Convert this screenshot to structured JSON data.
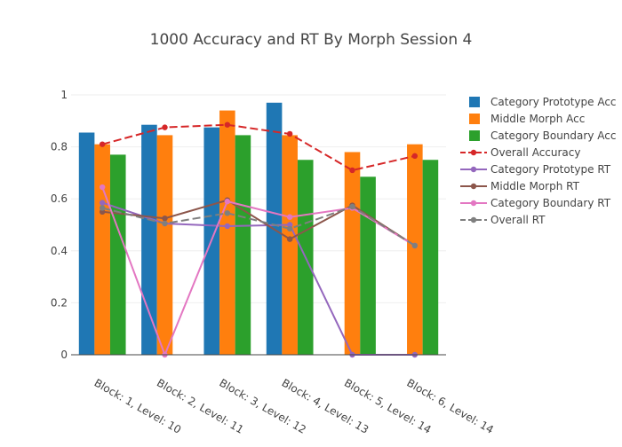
{
  "chart_data": {
    "type": "bar",
    "title": "1000 Accuracy and RT By Morph Session 4",
    "xlabel": "",
    "ylabel": "",
    "ylim": [
      0,
      1
    ],
    "yticks": [
      0,
      0.2,
      0.4,
      0.6,
      0.8,
      1
    ],
    "ytick_labels": [
      "0",
      "0.2",
      "0.4",
      "0.6",
      "0.8",
      "1"
    ],
    "grid": true,
    "legend_position": "right",
    "categories": [
      "Block: 1, Level: 10",
      "Block: 2, Level: 11",
      "Block: 3, Level: 12",
      "Block: 4, Level: 13",
      "Block: 5, Level: 14",
      "Block: 6, Level: 14"
    ],
    "series": [
      {
        "name": "Category Prototype Acc",
        "kind": "bar",
        "color": "#1f77b4",
        "values": [
          0.855,
          0.885,
          0.875,
          0.97,
          null,
          null
        ]
      },
      {
        "name": "Middle Morph Acc",
        "kind": "bar",
        "color": "#ff7f0e",
        "values": [
          0.81,
          0.845,
          0.94,
          0.845,
          0.78,
          0.81
        ]
      },
      {
        "name": "Category Boundary Acc",
        "kind": "bar",
        "color": "#2ca02c",
        "values": [
          0.77,
          null,
          0.845,
          0.75,
          0.685,
          0.75
        ]
      },
      {
        "name": "Overall Accuracy",
        "kind": "line",
        "dash": "dash",
        "color": "#d62728",
        "values": [
          0.81,
          0.875,
          0.885,
          0.85,
          0.71,
          0.765
        ]
      },
      {
        "name": "Category Prototype RT",
        "kind": "line",
        "dash": "solid",
        "color": "#9467bd",
        "values": [
          0.585,
          0.505,
          0.495,
          0.5,
          0.0,
          0.0
        ]
      },
      {
        "name": "Middle Morph RT",
        "kind": "line",
        "dash": "solid",
        "color": "#8c564b",
        "values": [
          0.55,
          0.525,
          0.595,
          0.445,
          0.575,
          0.42
        ]
      },
      {
        "name": "Category Boundary RT",
        "kind": "line",
        "dash": "solid",
        "color": "#e377c2",
        "values": [
          0.645,
          0.0,
          0.59,
          0.53,
          0.565,
          0.42
        ]
      },
      {
        "name": "Overall RT",
        "kind": "line",
        "dash": "dash",
        "color": "#7f7f7f",
        "values": [
          0.565,
          0.505,
          0.545,
          0.485,
          0.57,
          0.42
        ]
      }
    ]
  }
}
